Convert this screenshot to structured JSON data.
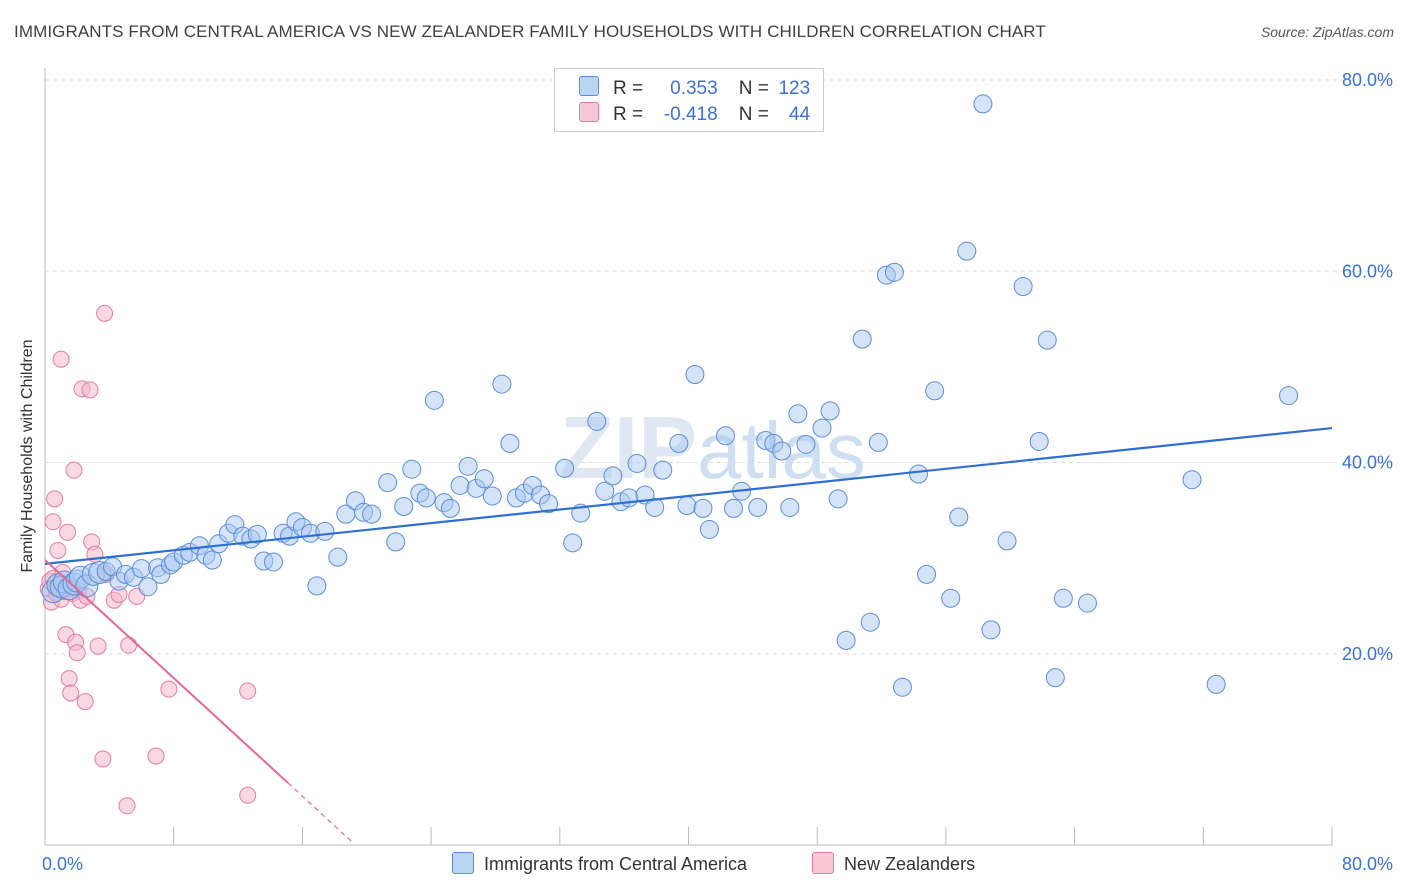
{
  "title": "IMMIGRANTS FROM CENTRAL AMERICA VS NEW ZEALANDER FAMILY HOUSEHOLDS WITH CHILDREN CORRELATION CHART",
  "source": "Source: ZipAtlas.com",
  "watermark": "ZIPatlas",
  "legend": {
    "rows": [
      {
        "r_label": "R =",
        "r_value": "0.353",
        "n_label": "N =",
        "n_value": "123"
      },
      {
        "r_label": "R =",
        "r_value": "-0.418",
        "n_label": "N =",
        "n_value": "44"
      }
    ]
  },
  "bottom_legend": [
    "Immigrants from Central America",
    "New Zealanders"
  ],
  "colors": {
    "blue_fill": "#a9c8f2",
    "blue_stroke": "#5b8fd6",
    "blue_line": "#2f6fd0",
    "pink_fill": "#f6b8cc",
    "pink_stroke": "#e07fa2",
    "pink_line": "#e06b98",
    "tick_label": "#3b73d0",
    "grid": "#dddddd"
  },
  "chart_data": {
    "type": "scatter",
    "title": "IMMIGRANTS FROM CENTRAL AMERICA VS NEW ZEALANDER FAMILY HOUSEHOLDS WITH CHILDREN CORRELATION CHART",
    "xlabel": "",
    "ylabel": "Family Households with Children",
    "xlim": [
      0,
      80
    ],
    "ylim": [
      0,
      80
    ],
    "x_tick_labels": [
      "0.0%",
      "80.0%"
    ],
    "y_tick_labels": [
      "20.0%",
      "40.0%",
      "60.0%",
      "80.0%"
    ],
    "y_ticks": [
      20,
      40,
      60,
      80
    ],
    "grid": true,
    "series": [
      {
        "name": "Immigrants from Central America",
        "color": "#a9c8f2",
        "trend": {
          "x": [
            0,
            80
          ],
          "y": [
            29.4,
            43.6
          ]
        },
        "points": [
          [
            0.5,
            26.5
          ],
          [
            0.8,
            27.2
          ],
          [
            1.0,
            27.0
          ],
          [
            1.2,
            27.5
          ],
          [
            1.5,
            26.8
          ],
          [
            1.8,
            27.3
          ],
          [
            2.0,
            27.6
          ],
          [
            2.2,
            28.0
          ],
          [
            2.6,
            27.1
          ],
          [
            3.0,
            28.3
          ],
          [
            3.4,
            28.5
          ],
          [
            3.8,
            28.6
          ],
          [
            4.2,
            29.1
          ],
          [
            4.6,
            27.6
          ],
          [
            5.0,
            28.3
          ],
          [
            5.5,
            28.0
          ],
          [
            6.0,
            28.9
          ],
          [
            6.4,
            27.0
          ],
          [
            7.0,
            29.0
          ],
          [
            7.2,
            28.3
          ],
          [
            7.8,
            29.3
          ],
          [
            8.0,
            29.6
          ],
          [
            8.6,
            30.3
          ],
          [
            9.0,
            30.6
          ],
          [
            9.6,
            31.3
          ],
          [
            10.0,
            30.3
          ],
          [
            10.4,
            29.8
          ],
          [
            10.8,
            31.5
          ],
          [
            11.4,
            32.6
          ],
          [
            11.8,
            33.5
          ],
          [
            12.3,
            32.3
          ],
          [
            12.8,
            32.0
          ],
          [
            13.2,
            32.5
          ],
          [
            13.6,
            29.7
          ],
          [
            14.2,
            29.6
          ],
          [
            14.8,
            32.6
          ],
          [
            15.2,
            32.3
          ],
          [
            15.6,
            33.8
          ],
          [
            16.0,
            33.2
          ],
          [
            16.5,
            32.6
          ],
          [
            16.9,
            27.1
          ],
          [
            17.4,
            32.8
          ],
          [
            18.2,
            30.1
          ],
          [
            18.7,
            34.6
          ],
          [
            19.3,
            36.0
          ],
          [
            19.8,
            34.8
          ],
          [
            20.3,
            34.6
          ],
          [
            21.3,
            37.9
          ],
          [
            21.8,
            31.7
          ],
          [
            22.3,
            35.4
          ],
          [
            22.8,
            39.3
          ],
          [
            23.3,
            36.8
          ],
          [
            23.7,
            36.3
          ],
          [
            24.2,
            46.5
          ],
          [
            24.8,
            35.8
          ],
          [
            25.2,
            35.2
          ],
          [
            25.8,
            37.6
          ],
          [
            26.3,
            39.6
          ],
          [
            26.8,
            37.3
          ],
          [
            27.3,
            38.3
          ],
          [
            27.8,
            36.5
          ],
          [
            28.4,
            48.2
          ],
          [
            28.9,
            42.0
          ],
          [
            29.3,
            36.3
          ],
          [
            29.8,
            36.8
          ],
          [
            30.3,
            37.6
          ],
          [
            30.8,
            36.6
          ],
          [
            31.3,
            35.7
          ],
          [
            32.3,
            39.4
          ],
          [
            32.8,
            31.6
          ],
          [
            33.3,
            34.7
          ],
          [
            34.3,
            44.3
          ],
          [
            34.8,
            37.0
          ],
          [
            35.3,
            38.6
          ],
          [
            35.8,
            35.9
          ],
          [
            36.3,
            36.3
          ],
          [
            36.8,
            39.9
          ],
          [
            37.3,
            36.6
          ],
          [
            37.9,
            35.3
          ],
          [
            38.4,
            39.2
          ],
          [
            39.4,
            42.0
          ],
          [
            39.9,
            35.5
          ],
          [
            40.4,
            49.2
          ],
          [
            40.9,
            35.2
          ],
          [
            41.3,
            33.0
          ],
          [
            42.3,
            42.8
          ],
          [
            42.8,
            35.2
          ],
          [
            43.3,
            37.0
          ],
          [
            44.3,
            35.3
          ],
          [
            44.8,
            42.3
          ],
          [
            45.3,
            42.0
          ],
          [
            45.8,
            41.2
          ],
          [
            46.3,
            35.3
          ],
          [
            46.8,
            45.1
          ],
          [
            47.3,
            41.9
          ],
          [
            48.3,
            43.6
          ],
          [
            48.8,
            45.4
          ],
          [
            49.3,
            36.2
          ],
          [
            49.8,
            21.4
          ],
          [
            50.8,
            52.9
          ],
          [
            51.3,
            23.3
          ],
          [
            51.8,
            42.1
          ],
          [
            52.3,
            59.6
          ],
          [
            52.8,
            59.9
          ],
          [
            53.3,
            16.5
          ],
          [
            54.3,
            38.8
          ],
          [
            54.8,
            28.3
          ],
          [
            55.3,
            47.5
          ],
          [
            56.3,
            25.8
          ],
          [
            56.8,
            34.3
          ],
          [
            57.3,
            62.1
          ],
          [
            58.3,
            77.5
          ],
          [
            58.8,
            22.5
          ],
          [
            59.8,
            31.8
          ],
          [
            60.8,
            58.4
          ],
          [
            61.8,
            42.2
          ],
          [
            62.3,
            52.8
          ],
          [
            62.8,
            17.5
          ],
          [
            63.3,
            25.8
          ],
          [
            64.8,
            25.3
          ],
          [
            71.3,
            38.2
          ],
          [
            72.8,
            16.8
          ],
          [
            77.3,
            47.0
          ]
        ]
      },
      {
        "name": "New Zealanders",
        "color": "#f6b8cc",
        "trend": {
          "x": [
            0,
            15.1
          ],
          "y": [
            29.8,
            6.5
          ]
        },
        "trend_dashed": {
          "x": [
            15.1,
            19.1
          ],
          "y": [
            6.5,
            0.3
          ]
        },
        "points": [
          [
            0.2,
            26.8
          ],
          [
            0.3,
            27.6
          ],
          [
            0.4,
            25.4
          ],
          [
            0.5,
            33.8
          ],
          [
            0.5,
            27.9
          ],
          [
            0.6,
            36.2
          ],
          [
            0.7,
            26.3
          ],
          [
            0.8,
            30.8
          ],
          [
            0.9,
            27.2
          ],
          [
            1.0,
            25.7
          ],
          [
            1.0,
            50.8
          ],
          [
            1.1,
            28.5
          ],
          [
            1.2,
            26.5
          ],
          [
            1.3,
            22.0
          ],
          [
            1.4,
            32.7
          ],
          [
            1.5,
            17.4
          ],
          [
            1.5,
            27.1
          ],
          [
            1.6,
            15.9
          ],
          [
            1.7,
            26.3
          ],
          [
            1.8,
            39.2
          ],
          [
            1.9,
            21.2
          ],
          [
            2.0,
            20.1
          ],
          [
            2.1,
            26.6
          ],
          [
            2.2,
            25.6
          ],
          [
            2.3,
            47.7
          ],
          [
            2.5,
            15.0
          ],
          [
            2.6,
            26.0
          ],
          [
            2.8,
            47.6
          ],
          [
            2.9,
            31.7
          ],
          [
            3.1,
            30.4
          ],
          [
            3.3,
            20.8
          ],
          [
            3.6,
            9.0
          ],
          [
            3.7,
            55.6
          ],
          [
            3.8,
            28.3
          ],
          [
            4.3,
            25.6
          ],
          [
            4.6,
            26.2
          ],
          [
            5.1,
            4.1
          ],
          [
            5.2,
            20.9
          ],
          [
            5.7,
            26.0
          ],
          [
            6.9,
            9.3
          ],
          [
            7.7,
            16.3
          ],
          [
            12.6,
            16.1
          ],
          [
            12.6,
            5.2
          ],
          [
            1.8,
            26.9
          ]
        ]
      }
    ]
  }
}
